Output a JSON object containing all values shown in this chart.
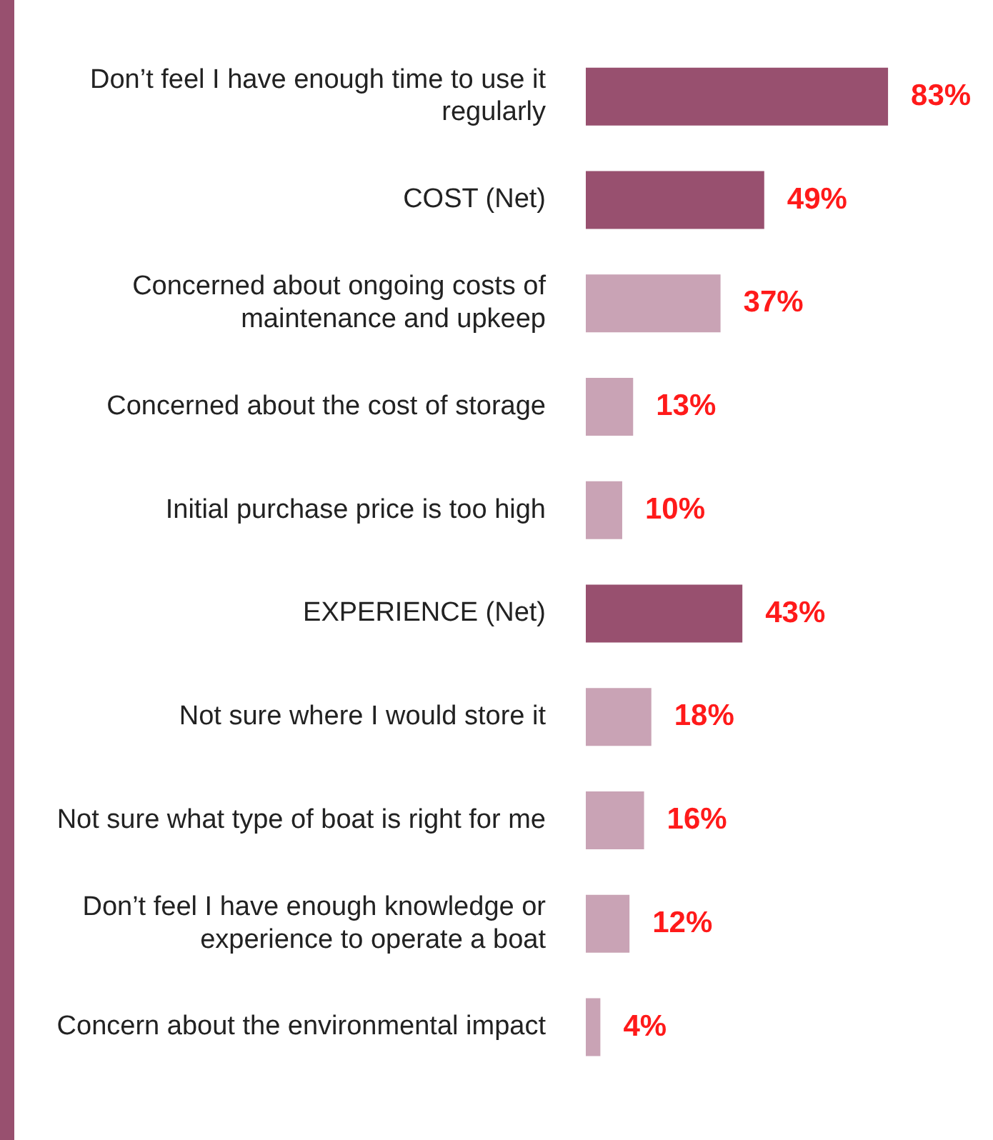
{
  "chart_data": {
    "type": "bar",
    "orientation": "horizontal",
    "legend": false,
    "tick_labels": "y",
    "categories": [
      "Don’t feel I have enough time to use it regularly",
      "COST (Net)",
      "Concerned about ongoing costs of maintenance and upkeep",
      "Concerned about the cost of storage",
      "Initial purchase price is too high",
      "EXPERIENCE (Net)",
      "Not sure where I would store it",
      "Not sure what type of boat is right for me",
      "Don’t feel I have enough knowledge or experience to operate a boat",
      "Concern about the environmental impact"
    ],
    "values": [
      83,
      49,
      37,
      13,
      10,
      43,
      18,
      16,
      12,
      4
    ],
    "colors": [
      "#98506f",
      "#98506f",
      "#c9a3b5",
      "#c9a3b5",
      "#c9a3b5",
      "#98506f",
      "#c9a3b5",
      "#c9a3b5",
      "#c9a3b5",
      "#c9a3b5"
    ],
    "value_labels": [
      "83%",
      "49%",
      "37%",
      "13%",
      "10%",
      "43%",
      "18%",
      "16%",
      "12%",
      "4%"
    ]
  }
}
